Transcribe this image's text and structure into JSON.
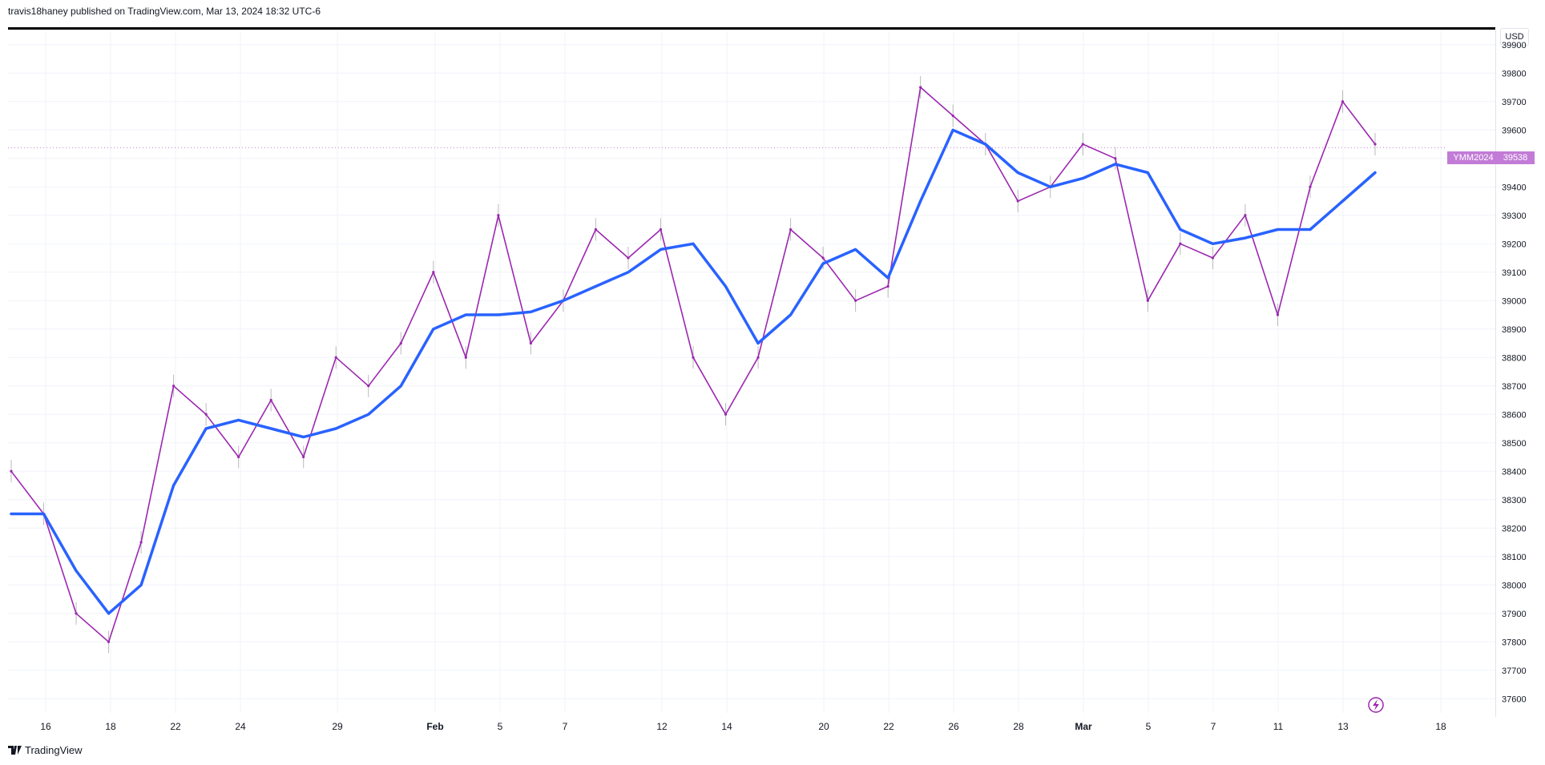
{
  "header": {
    "attribution": "travis18haney published on TradingView.com, Mar 13, 2024 18:32 UTC-6"
  },
  "price_axis": {
    "currency": "USD"
  },
  "last_price": {
    "symbol": "YMM2024",
    "value": "39538"
  },
  "footer": {
    "brand": "TradingView"
  },
  "colors": {
    "price_line": "#9c27b0",
    "price_wick": "#9e9e9e",
    "moving_average": "#2962ff",
    "grid": "#f0f3fa",
    "last_price_tag": "#c27bd6"
  },
  "chart_data": {
    "type": "line",
    "title": "",
    "xlabel": "",
    "ylabel": "",
    "ylim": [
      37550,
      39950
    ],
    "y_ticks": [
      37600,
      37700,
      37800,
      37900,
      38000,
      38100,
      38200,
      38300,
      38400,
      38500,
      38600,
      38700,
      38800,
      38900,
      39000,
      39100,
      39200,
      39300,
      39400,
      39500,
      39600,
      39700,
      39800,
      39900
    ],
    "x_tick_labels": [
      "16",
      "18",
      "22",
      "24",
      "29",
      "Feb",
      "5",
      "7",
      "12",
      "14",
      "20",
      "22",
      "26",
      "28",
      "Mar",
      "5",
      "7",
      "11",
      "13",
      "18"
    ],
    "x": [
      "Jan 15",
      "Jan 16",
      "Jan 17",
      "Jan 18",
      "Jan 19",
      "Jan 22",
      "Jan 23",
      "Jan 24",
      "Jan 25",
      "Jan 26",
      "Jan 29",
      "Jan 30",
      "Jan 31",
      "Feb 1",
      "Feb 2",
      "Feb 5",
      "Feb 6",
      "Feb 7",
      "Feb 8",
      "Feb 9",
      "Feb 12",
      "Feb 13",
      "Feb 14",
      "Feb 15",
      "Feb 16",
      "Feb 20",
      "Feb 21",
      "Feb 22",
      "Feb 23",
      "Feb 26",
      "Feb 27",
      "Feb 28",
      "Feb 29",
      "Mar 1",
      "Mar 4",
      "Mar 5",
      "Mar 6",
      "Mar 7",
      "Mar 8",
      "Mar 11",
      "Mar 12",
      "Mar 13",
      "Mar 14"
    ],
    "series": [
      {
        "values": [
          38400,
          38250,
          37900,
          37800,
          38150,
          38700,
          38600,
          38450,
          38650,
          38450,
          38800,
          38700,
          38850,
          39100,
          38800,
          39300,
          38850,
          39000,
          39250,
          39150,
          39250,
          38800,
          38600,
          38800,
          39250,
          39150,
          39000,
          39050,
          39750,
          39650,
          39550,
          39350,
          39400,
          39550,
          39500,
          39000,
          39200,
          39150,
          39300,
          38950,
          39400,
          39700,
          39550
        ]
      },
      {
        "values": [
          38250,
          38250,
          38050,
          37900,
          38000,
          38350,
          38550,
          38580,
          38550,
          38520,
          38550,
          38600,
          38700,
          38900,
          38950,
          38950,
          38960,
          39000,
          39050,
          39100,
          39180,
          39200,
          39050,
          38850,
          38950,
          39130,
          39180,
          39080,
          39350,
          39600,
          39550,
          39450,
          39400,
          39430,
          39480,
          39450,
          39250,
          39200,
          39220,
          39250,
          39250,
          39350,
          39450
        ]
      }
    ],
    "last_value": 39538,
    "grid": true
  }
}
